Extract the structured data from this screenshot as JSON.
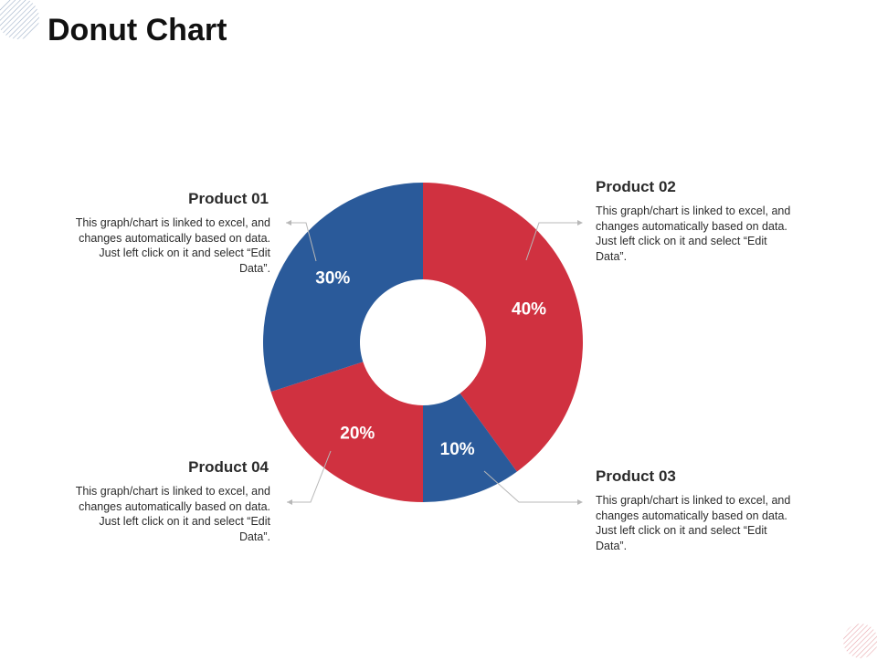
{
  "slide": {
    "title": "Donut Chart"
  },
  "colors": {
    "blue": "#2A5A9A",
    "red": "#D03140",
    "connector": "#b8b8b8"
  },
  "chart_data": {
    "type": "pie",
    "style": "donut",
    "categories": [
      "Product 02",
      "Product 03",
      "Product 04",
      "Product 01"
    ],
    "values": [
      40,
      10,
      20,
      30
    ],
    "data_labels": [
      "40%",
      "10%",
      "20%",
      "30%"
    ],
    "colors": [
      "#D03140",
      "#2A5A9A",
      "#D03140",
      "#2A5A9A"
    ]
  },
  "callouts": {
    "p01": {
      "title": "Product 01",
      "text": "This graph/chart is linked to excel, and changes automatically based on data. Just left click on it and select “Edit Data”."
    },
    "p02": {
      "title": "Product 02",
      "text": "This graph/chart is linked to excel, and changes automatically based on data. Just left click on it and select “Edit Data”."
    },
    "p03": {
      "title": "Product 03",
      "text": "This graph/chart is linked to excel, and changes automatically based on data. Just left click on it and select “Edit Data”."
    },
    "p04": {
      "title": "Product 04",
      "text": "This graph/chart is linked to excel, and changes automatically based on data. Just left click on it and select “Edit Data”."
    }
  }
}
